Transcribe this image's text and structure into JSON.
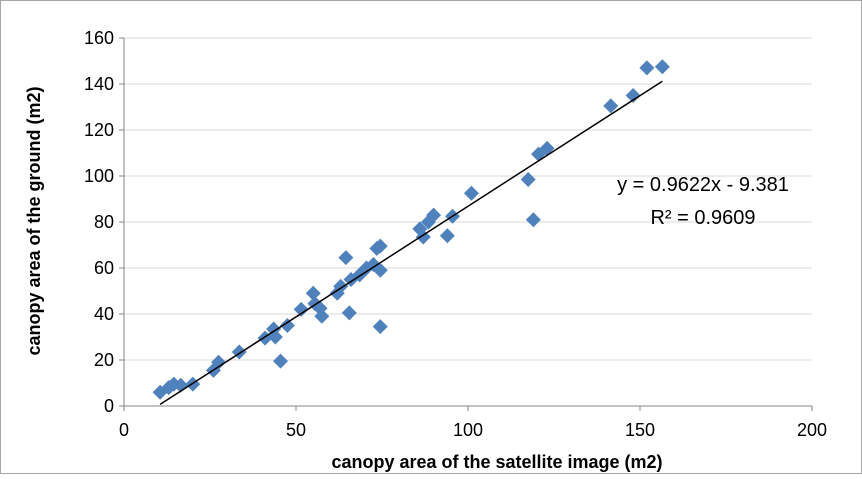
{
  "chart_data": {
    "type": "scatter",
    "title": "",
    "xlabel": "canopy area of the satellite image (m2)",
    "ylabel": "canopy area of the ground (m2)",
    "xlim": [
      0,
      200
    ],
    "ylim": [
      0,
      160
    ],
    "x_ticks": [
      0,
      50,
      100,
      150,
      200
    ],
    "y_ticks": [
      0,
      20,
      40,
      60,
      80,
      100,
      120,
      140,
      160
    ],
    "grid": "horizontal",
    "legend": "none",
    "marker": "diamond",
    "marker_color": "#4F81BD",
    "trendline": {
      "type": "linear",
      "slope": 0.9622,
      "intercept": -9.381,
      "x_range": [
        10.5,
        156.5
      ],
      "color": "#000000"
    },
    "annotations": {
      "equation": "y = 0.9622x - 9.381",
      "r_squared": "R² = 0.9609"
    },
    "series": [
      {
        "points": [
          [
            10.5,
            6
          ],
          [
            13,
            8
          ],
          [
            14.5,
            9.5
          ],
          [
            16.5,
            9
          ],
          [
            20,
            9.5
          ],
          [
            26,
            15.5
          ],
          [
            27.5,
            19
          ],
          [
            33.5,
            23.5
          ],
          [
            41,
            29.5
          ],
          [
            43.5,
            33.5
          ],
          [
            44,
            30
          ],
          [
            45.5,
            19.5
          ],
          [
            47.5,
            35
          ],
          [
            51.5,
            42
          ],
          [
            55,
            49
          ],
          [
            55.5,
            44.5
          ],
          [
            57,
            42.5
          ],
          [
            57.5,
            39
          ],
          [
            62,
            49
          ],
          [
            63,
            52
          ],
          [
            64.5,
            64.5
          ],
          [
            65.5,
            40.5
          ],
          [
            66,
            55
          ],
          [
            68.5,
            57
          ],
          [
            70.5,
            60
          ],
          [
            72.5,
            61.5
          ],
          [
            73.5,
            68.5
          ],
          [
            74.5,
            69.5
          ],
          [
            74.5,
            59
          ],
          [
            74.5,
            34.5
          ],
          [
            86,
            77
          ],
          [
            87,
            73.5
          ],
          [
            88.5,
            80
          ],
          [
            90,
            83
          ],
          [
            94,
            74
          ],
          [
            95.5,
            82.5
          ],
          [
            101,
            92.5
          ],
          [
            117.5,
            98.5
          ],
          [
            119,
            81
          ],
          [
            120.5,
            109.5
          ],
          [
            123,
            112
          ],
          [
            141.5,
            130.5
          ],
          [
            148,
            135
          ],
          [
            152,
            147
          ],
          [
            156.5,
            147.5
          ]
        ]
      }
    ]
  }
}
